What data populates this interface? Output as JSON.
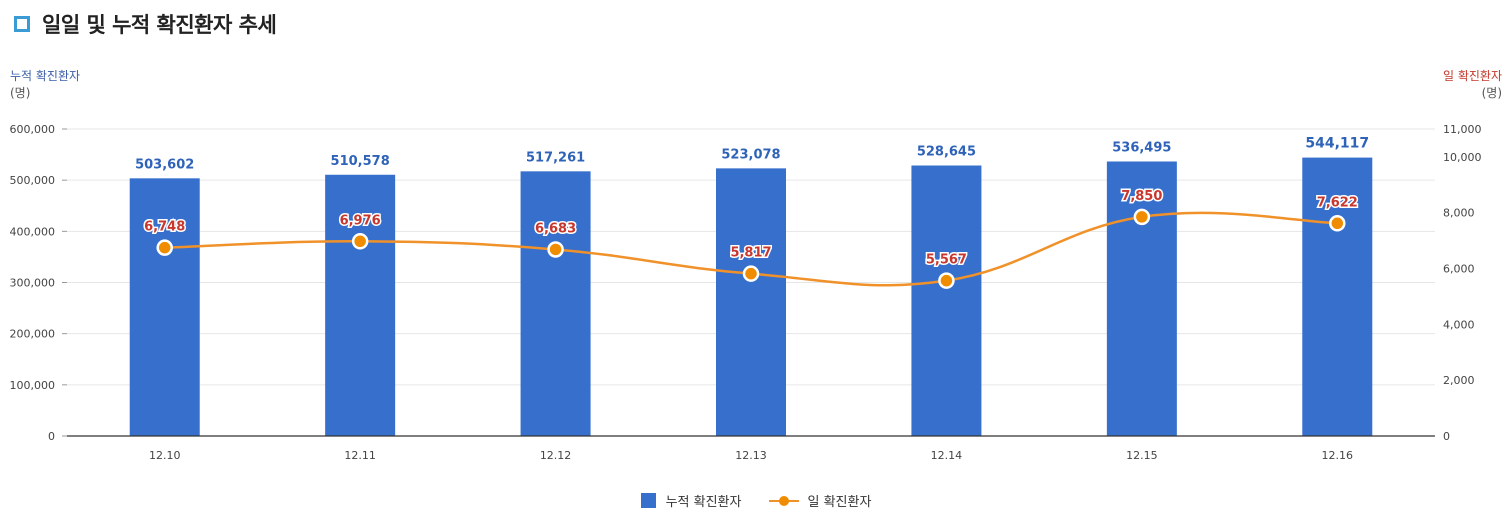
{
  "page": {
    "title": "일일 및 누적 확진환자 추세",
    "left_axis_title": "누적 확진환자",
    "left_axis_unit": "(명)",
    "right_axis_title": "일 확진환자",
    "right_axis_unit": "(명)"
  },
  "colors": {
    "bar": "#3670cc",
    "line": "#f0912a",
    "marker": "#f08c00",
    "bar_label": "#2f63b8",
    "line_label": "#c8372d"
  },
  "chart_data": {
    "type": "bar",
    "categories": [
      "12.10",
      "12.11",
      "12.12",
      "12.13",
      "12.14",
      "12.15",
      "12.16"
    ],
    "series": [
      {
        "name": "누적 확진환자",
        "type": "bar",
        "axis": "left",
        "values": [
          503602,
          510578,
          517261,
          523078,
          528645,
          536495,
          544117
        ],
        "labels": [
          "503,602",
          "510,578",
          "517,261",
          "523,078",
          "528,645",
          "536,495",
          "544,117"
        ]
      },
      {
        "name": "일 확진환자",
        "type": "line",
        "axis": "right",
        "values": [
          6748,
          6976,
          6683,
          5817,
          5567,
          7850,
          7622
        ],
        "labels": [
          "6,748",
          "6,976",
          "6,683",
          "5,817",
          "5,567",
          "7,850",
          "7,622"
        ]
      }
    ],
    "y_left": {
      "min": 0,
      "max": 600000,
      "ticks": [
        0,
        100000,
        200000,
        300000,
        400000,
        500000,
        600000
      ],
      "tick_labels": [
        "0",
        "100,000",
        "200,000",
        "300,000",
        "400,000",
        "500,000",
        "600,000"
      ]
    },
    "y_right": {
      "min": 0,
      "max": 11000,
      "ticks": [
        0,
        2000,
        4000,
        6000,
        8000,
        10000,
        11000
      ],
      "tick_labels": [
        "0",
        "2,000",
        "4,000",
        "6,000",
        "8,000",
        "10,000",
        "11,000"
      ]
    },
    "grid": true,
    "legend_position": "bottom-center"
  }
}
